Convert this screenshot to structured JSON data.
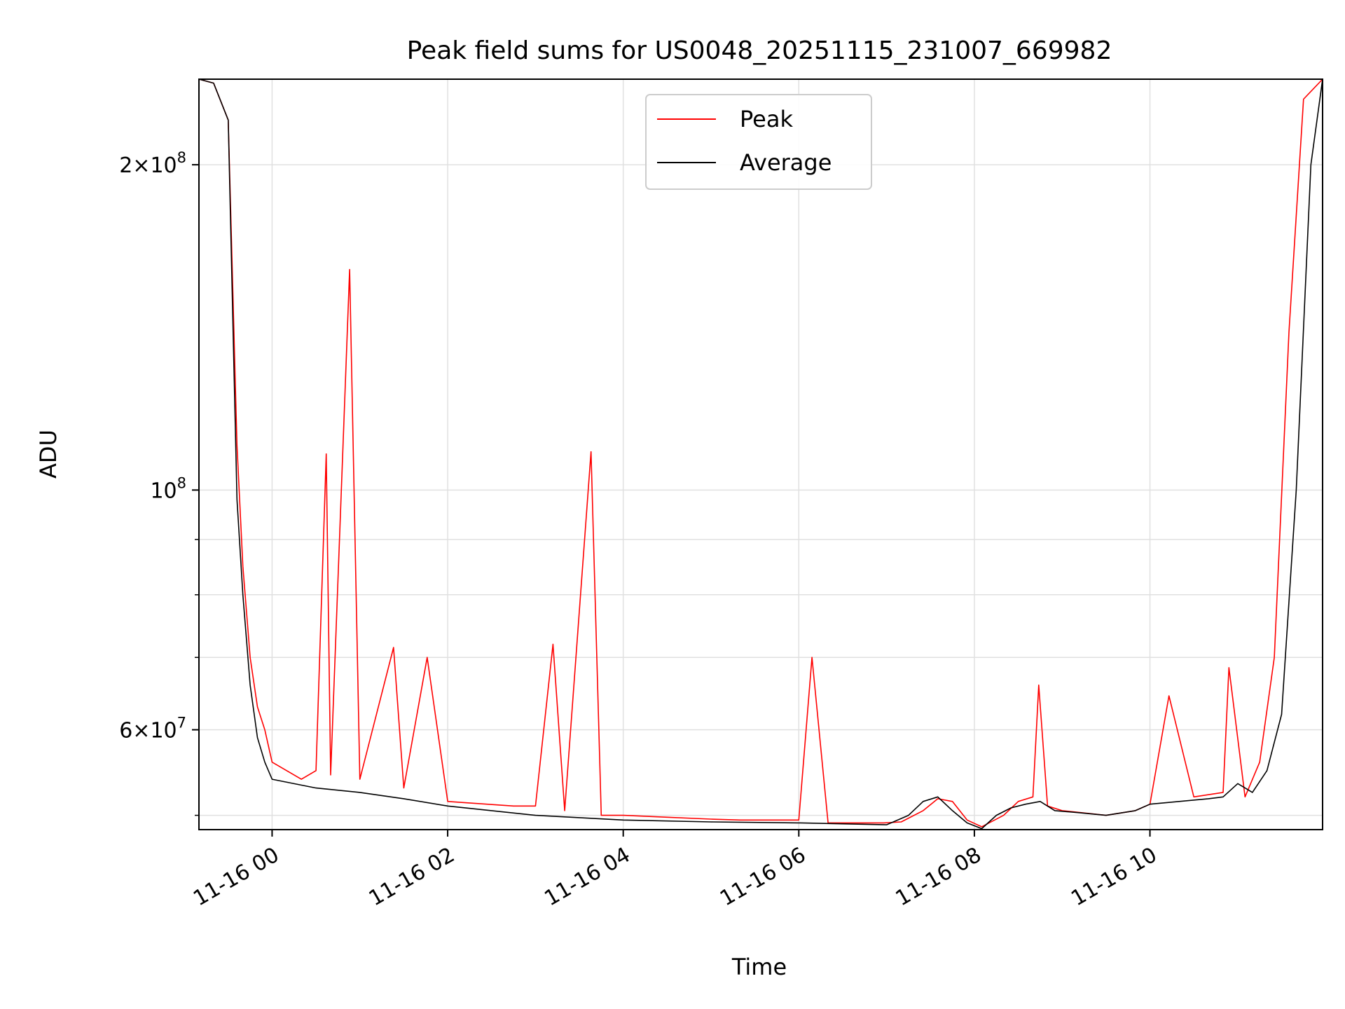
{
  "chart_data": {
    "type": "line",
    "title": "Peak field sums for US0048_20251115_231007_669982",
    "xlabel": "Time",
    "ylabel": "ADU",
    "yscale": "log",
    "xlim": [
      "2025-11-15 23:10",
      "2025-11-16 11:58"
    ],
    "ylim": [
      48500000,
      240000000
    ],
    "grid": true,
    "legend_position": "top-center",
    "x_ticks": [
      {
        "value": "2025-11-16 00:00",
        "label": "11-16 00"
      },
      {
        "value": "2025-11-16 02:00",
        "label": "11-16 02"
      },
      {
        "value": "2025-11-16 04:00",
        "label": "11-16 04"
      },
      {
        "value": "2025-11-16 06:00",
        "label": "11-16 06"
      },
      {
        "value": "2025-11-16 08:00",
        "label": "11-16 08"
      },
      {
        "value": "2025-11-16 10:00",
        "label": "11-16 10"
      }
    ],
    "y_ticks_major": [
      {
        "value": 60000000,
        "mantissa": "6",
        "exponent": "7"
      },
      {
        "value": 100000000,
        "mantissa": "",
        "exponent": "8"
      },
      {
        "value": 200000000,
        "mantissa": "2",
        "exponent": "8"
      }
    ],
    "y_ticks_minor": [
      50000000,
      70000000,
      80000000,
      90000000
    ],
    "series": [
      {
        "name": "Peak",
        "color": "#ff0000",
        "x": [
          "2025-11-15 23:10",
          "2025-11-15 23:20",
          "2025-11-15 23:30",
          "2025-11-15 23:36",
          "2025-11-15 23:40",
          "2025-11-15 23:45",
          "2025-11-15 23:50",
          "2025-11-15 23:55",
          "2025-11-16 00:00",
          "2025-11-16 00:20",
          "2025-11-16 00:30",
          "2025-11-16 00:37",
          "2025-11-16 00:40",
          "2025-11-16 00:53",
          "2025-11-16 01:00",
          "2025-11-16 01:23",
          "2025-11-16 01:30",
          "2025-11-16 01:46",
          "2025-11-16 02:00",
          "2025-11-16 02:45",
          "2025-11-16 03:00",
          "2025-11-16 03:12",
          "2025-11-16 03:20",
          "2025-11-16 03:38",
          "2025-11-16 03:45",
          "2025-11-16 04:00",
          "2025-11-16 04:30",
          "2025-11-16 05:00",
          "2025-11-16 05:20",
          "2025-11-16 05:50",
          "2025-11-16 06:00",
          "2025-11-16 06:09",
          "2025-11-16 06:20",
          "2025-11-16 06:58",
          "2025-11-16 07:10",
          "2025-11-16 07:25",
          "2025-11-16 07:35",
          "2025-11-16 07:45",
          "2025-11-16 07:55",
          "2025-11-16 08:05",
          "2025-11-16 08:20",
          "2025-11-16 08:30",
          "2025-11-16 08:40",
          "2025-11-16 08:44",
          "2025-11-16 08:50",
          "2025-11-16 09:00",
          "2025-11-16 09:30",
          "2025-11-16 09:50",
          "2025-11-16 10:00",
          "2025-11-16 10:13",
          "2025-11-16 10:30",
          "2025-11-16 10:50",
          "2025-11-16 10:54",
          "2025-11-16 11:05",
          "2025-11-16 11:15",
          "2025-11-16 11:25",
          "2025-11-16 11:35",
          "2025-11-16 11:45",
          "2025-11-16 11:58"
        ],
        "y": [
          240000000,
          238000000,
          220000000,
          110000000,
          85000000,
          70000000,
          63000000,
          60000000,
          56000000,
          54000000,
          55000000,
          108000000,
          54500000,
          160000000,
          54000000,
          71500000,
          53000000,
          70000000,
          51500000,
          51000000,
          51000000,
          72000000,
          50500000,
          108500000,
          50000000,
          50000000,
          49800000,
          49600000,
          49500000,
          49500000,
          49500000,
          70000000,
          49200000,
          49200000,
          49300000,
          50500000,
          51800000,
          51500000,
          49500000,
          48800000,
          50000000,
          51500000,
          52000000,
          66000000,
          51000000,
          50500000,
          50000000,
          50500000,
          51200000,
          64500000,
          52000000,
          52500000,
          68500000,
          52000000,
          56000000,
          70000000,
          140000000,
          230000000,
          240000000
        ]
      },
      {
        "name": "Average",
        "color": "#000000",
        "x": [
          "2025-11-15 23:10",
          "2025-11-15 23:20",
          "2025-11-15 23:30",
          "2025-11-15 23:36",
          "2025-11-15 23:40",
          "2025-11-15 23:45",
          "2025-11-15 23:50",
          "2025-11-15 23:55",
          "2025-11-16 00:00",
          "2025-11-16 00:30",
          "2025-11-16 01:00",
          "2025-11-16 01:30",
          "2025-11-16 02:00",
          "2025-11-16 03:00",
          "2025-11-16 04:00",
          "2025-11-16 05:00",
          "2025-11-16 06:00",
          "2025-11-16 07:00",
          "2025-11-16 07:15",
          "2025-11-16 07:25",
          "2025-11-16 07:35",
          "2025-11-16 07:45",
          "2025-11-16 07:55",
          "2025-11-16 08:05",
          "2025-11-16 08:15",
          "2025-11-16 08:25",
          "2025-11-16 08:35",
          "2025-11-16 08:45",
          "2025-11-16 08:55",
          "2025-11-16 09:10",
          "2025-11-16 09:30",
          "2025-11-16 09:50",
          "2025-11-16 10:00",
          "2025-11-16 10:20",
          "2025-11-16 10:40",
          "2025-11-16 10:50",
          "2025-11-16 11:00",
          "2025-11-16 11:10",
          "2025-11-16 11:20",
          "2025-11-16 11:30",
          "2025-11-16 11:40",
          "2025-11-16 11:50",
          "2025-11-16 11:58"
        ],
        "y": [
          240000000,
          238000000,
          220000000,
          98000000,
          80000000,
          66000000,
          59000000,
          56000000,
          54000000,
          53000000,
          52500000,
          51800000,
          51000000,
          50000000,
          49500000,
          49300000,
          49200000,
          49000000,
          50000000,
          51500000,
          52000000,
          50500000,
          49200000,
          48600000,
          50000000,
          50800000,
          51200000,
          51500000,
          50500000,
          50300000,
          50000000,
          50500000,
          51200000,
          51500000,
          51800000,
          52000000,
          53500000,
          52500000,
          55000000,
          62000000,
          100000000,
          200000000,
          240000000
        ]
      }
    ]
  }
}
